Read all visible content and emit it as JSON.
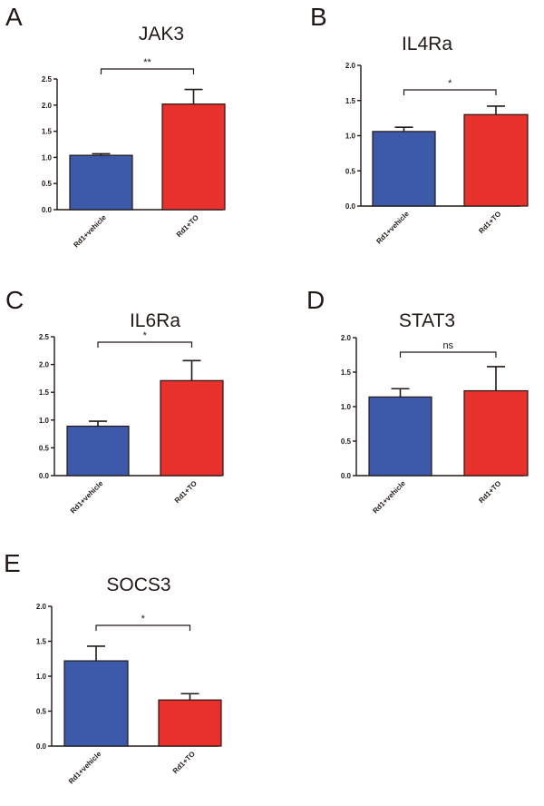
{
  "colors": {
    "vehicle": "#3c5aa9",
    "to": "#e8302c",
    "ink": "#231815"
  },
  "chart_data": [
    {
      "type": "bar",
      "panel": "A",
      "title": "JAK3",
      "categories": [
        "Rd1+vehicle",
        "Rd1+TO"
      ],
      "values": [
        1.04,
        2.02
      ],
      "errors": [
        0.03,
        0.28
      ],
      "ylim": [
        0,
        2.5
      ],
      "yticks": [
        "0.0",
        "0.5",
        "1.0",
        "1.5",
        "2.0",
        "2.5"
      ],
      "significance": "**",
      "xlabel": "",
      "ylabel": ""
    },
    {
      "type": "bar",
      "panel": "B",
      "title": "IL4Ra",
      "categories": [
        "Rd1+vehicle",
        "Rd1+TO"
      ],
      "values": [
        1.06,
        1.3
      ],
      "errors": [
        0.06,
        0.12
      ],
      "ylim": [
        0,
        2.0
      ],
      "yticks": [
        "0.0",
        "0.5",
        "1.0",
        "1.5",
        "2.0"
      ],
      "significance": "*",
      "xlabel": "",
      "ylabel": ""
    },
    {
      "type": "bar",
      "panel": "C",
      "title": "IL6Ra",
      "categories": [
        "Rd1+vehicle",
        "Rd1+TO"
      ],
      "values": [
        0.89,
        1.71
      ],
      "errors": [
        0.09,
        0.36
      ],
      "ylim": [
        0,
        2.5
      ],
      "yticks": [
        "0.0",
        "0.5",
        "1.0",
        "1.5",
        "2.0",
        "2.5"
      ],
      "significance": "*",
      "xlabel": "",
      "ylabel": ""
    },
    {
      "type": "bar",
      "panel": "D",
      "title": "STAT3",
      "categories": [
        "Rd1+vehicle",
        "Rd1+TO"
      ],
      "values": [
        1.14,
        1.23
      ],
      "errors": [
        0.12,
        0.35
      ],
      "ylim": [
        0,
        2.0
      ],
      "yticks": [
        "0.0",
        "0.5",
        "1.0",
        "1.5",
        "2.0"
      ],
      "significance": "ns",
      "xlabel": "",
      "ylabel": ""
    },
    {
      "type": "bar",
      "panel": "E",
      "title": "SOCS3",
      "categories": [
        "Rd1+vehicle",
        "Rd1+TO"
      ],
      "values": [
        1.22,
        0.66
      ],
      "errors": [
        0.21,
        0.09
      ],
      "ylim": [
        0,
        2.0
      ],
      "yticks": [
        "0.0",
        "0.5",
        "1.0",
        "1.5",
        "2.0"
      ],
      "significance": "*",
      "xlabel": "",
      "ylabel": ""
    }
  ]
}
